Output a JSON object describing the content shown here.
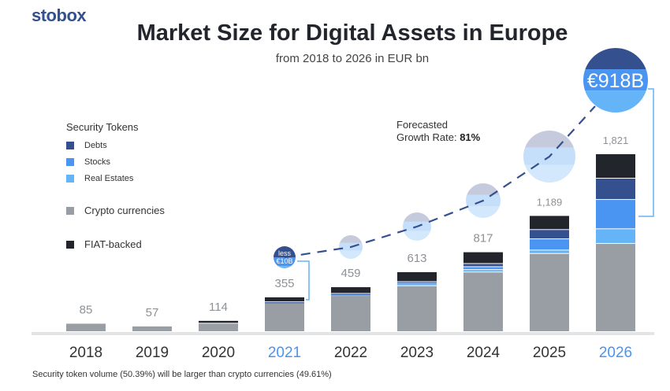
{
  "logo": "stobox",
  "title": "Market Size for Digital Assets in Europe",
  "subtitle": "from 2018 to 2026 in EUR bn",
  "legend": {
    "group_title": "Security Tokens",
    "items": [
      {
        "label": "Debts",
        "color": "#34508f"
      },
      {
        "label": "Stocks",
        "color": "#4a94f2"
      },
      {
        "label": "Real Estates",
        "color": "#65b4f7"
      },
      {
        "label": "Crypto currencies",
        "color": "#999ea5"
      },
      {
        "label": "FIAT-backed",
        "color": "#23252d"
      }
    ]
  },
  "growth": {
    "label_line1": "Forecasted",
    "label_line2": "Growth Rate: ",
    "value": "81%"
  },
  "footnote": "Security token volume (50.39%) will be larger than crypto currencies (49.61%)",
  "chart_data": {
    "type": "bar",
    "stacked": true,
    "title": "Market Size for Digital Assets in Europe",
    "subtitle": "from 2018 to 2026 in EUR bn",
    "categories": [
      "2018",
      "2019",
      "2020",
      "2021",
      "2022",
      "2023",
      "2024",
      "2025",
      "2026"
    ],
    "highlighted_categories": [
      "2021",
      "2026"
    ],
    "totals_labels": [
      "85",
      "57",
      "114",
      "355",
      "459",
      "613",
      "817",
      "1,189",
      "1,821"
    ],
    "totals": [
      85,
      57,
      114,
      355,
      459,
      613,
      817,
      1189,
      1821
    ],
    "series": [
      {
        "name": "Crypto currencies",
        "color": "#999ea5",
        "values": [
          85,
          57,
          86,
          295,
          370,
          470,
          610,
          800,
          903
        ]
      },
      {
        "name": "Real Estates",
        "color": "#65b4f7",
        "values": [
          0,
          0,
          0,
          5,
          8,
          22,
          25,
          35,
          150
        ]
      },
      {
        "name": "Stocks",
        "color": "#4a94f2",
        "values": [
          0,
          0,
          0,
          2,
          8,
          10,
          30,
          115,
          300
        ]
      },
      {
        "name": "Debts",
        "color": "#34508f",
        "values": [
          0,
          0,
          0,
          3,
          5,
          10,
          32,
          95,
          218
        ]
      },
      {
        "name": "FIAT-backed",
        "color": "#23252d",
        "values": [
          0,
          0,
          28,
          50,
          68,
          101,
          120,
          144,
          250
        ]
      }
    ],
    "security_token_bubbles": {
      "labels": {
        "2021": "less €10B",
        "2026": "€918B"
      },
      "values": [
        null,
        null,
        null,
        10,
        50,
        120,
        250,
        550,
        918
      ]
    },
    "ylim": [
      0,
      1821
    ],
    "grid": false
  }
}
